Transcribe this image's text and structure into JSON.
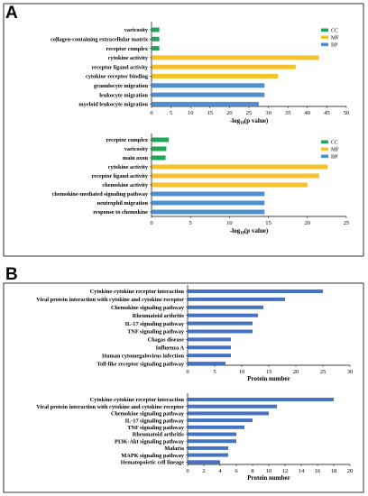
{
  "panels": {
    "a_label": "A",
    "b_label": "B"
  },
  "chart_data": [
    {
      "type": "bar",
      "orientation": "horizontal",
      "panel": "A",
      "categories": [
        "varicosity",
        "collagen-containing extracellular matrix",
        "receptor complex",
        "cytokine activity",
        "receptor ligand activity",
        "cytokine receptor binding",
        "granulocyte migration",
        "leukocyte migration",
        "myeloid leukocyte migration"
      ],
      "values": [
        2,
        2,
        2,
        43,
        37,
        32.5,
        29,
        29,
        27.5
      ],
      "groups": [
        "CC",
        "CC",
        "CC",
        "MF",
        "MF",
        "MF",
        "BP",
        "BP",
        "BP"
      ],
      "legend": [
        {
          "name": "CC",
          "color": "#1ea75a"
        },
        {
          "name": "MF",
          "color": "#f7c12a"
        },
        {
          "name": "BP",
          "color": "#4f90cc"
        }
      ],
      "legend_position": "top-right",
      "xlabel_main": "-log",
      "xlabel_sub": "10",
      "xlabel_tail": "(p value)",
      "xlim": [
        0,
        50
      ],
      "xticks": [
        "0",
        "5",
        "10",
        "15",
        "20",
        "25",
        "30",
        "35",
        "40",
        "45",
        "50"
      ]
    },
    {
      "type": "bar",
      "orientation": "horizontal",
      "panel": "A",
      "categories": [
        "receptor complex",
        "varicosity",
        "main axon",
        "cytokine activity",
        "receptor ligand activity",
        "chemokine activity",
        "chemokine-mediated signaling pathway",
        "neutrophil migration",
        "response to chemokine"
      ],
      "values": [
        2.2,
        1.9,
        1.8,
        22.6,
        21.5,
        20,
        14.5,
        14.5,
        14.5
      ],
      "groups": [
        "CC",
        "CC",
        "CC",
        "MF",
        "MF",
        "MF",
        "BP",
        "BP",
        "BP"
      ],
      "legend": [
        {
          "name": "CC",
          "color": "#1ea75a"
        },
        {
          "name": "MF",
          "color": "#f7c12a"
        },
        {
          "name": "BP",
          "color": "#4f90cc"
        }
      ],
      "legend_position": "top-right",
      "xlabel_main": "-log",
      "xlabel_sub": "10",
      "xlabel_tail": "(p value)",
      "xlim": [
        0,
        25
      ],
      "xticks": [
        "0",
        "5",
        "10",
        "15",
        "20",
        "25"
      ]
    },
    {
      "type": "bar",
      "orientation": "horizontal",
      "panel": "B",
      "categories": [
        "Cytokine-cytokine receptor interaction",
        "Viral protein interaction with cytokine and cytokine receptor",
        "Chemokine signaling pathway",
        "Rheumatoid arthritis",
        "IL-17 signaling pathway",
        "TNF signaling pathway",
        "Chagas disease",
        "Influenza A",
        "Human cytomegalovirus infection",
        "Toll-like receptor signaling pathway"
      ],
      "values": [
        25,
        18,
        14,
        13,
        12,
        12,
        8,
        8,
        8,
        7
      ],
      "color": "#4472c4",
      "xlabel": "Protein number",
      "xlim": [
        0,
        30
      ],
      "xticks": [
        "0",
        "5",
        "10",
        "15",
        "20",
        "25",
        "30"
      ]
    },
    {
      "type": "bar",
      "orientation": "horizontal",
      "panel": "B",
      "categories": [
        "Cytokine-cytokine receptor interaction",
        "Viral protein interaction with cytokine and cytokine receptor",
        "Chemokine signaling pathway",
        "IL-17 signaling pathway",
        "TNF signaling pathway",
        "Rheumatoid arthritis",
        "PI3K-Akt signaling pathway",
        "Malaria",
        "MAPK signaling pathway",
        "Hematopoietic cell lineage"
      ],
      "values": [
        18,
        11,
        10,
        8,
        7,
        6,
        6,
        5,
        5,
        4
      ],
      "color": "#4472c4",
      "xlabel": "Protein number",
      "xlim": [
        0,
        20
      ],
      "xticks": [
        "0",
        "2",
        "4",
        "6",
        "8",
        "10",
        "12",
        "14",
        "16",
        "18",
        "20"
      ]
    }
  ]
}
